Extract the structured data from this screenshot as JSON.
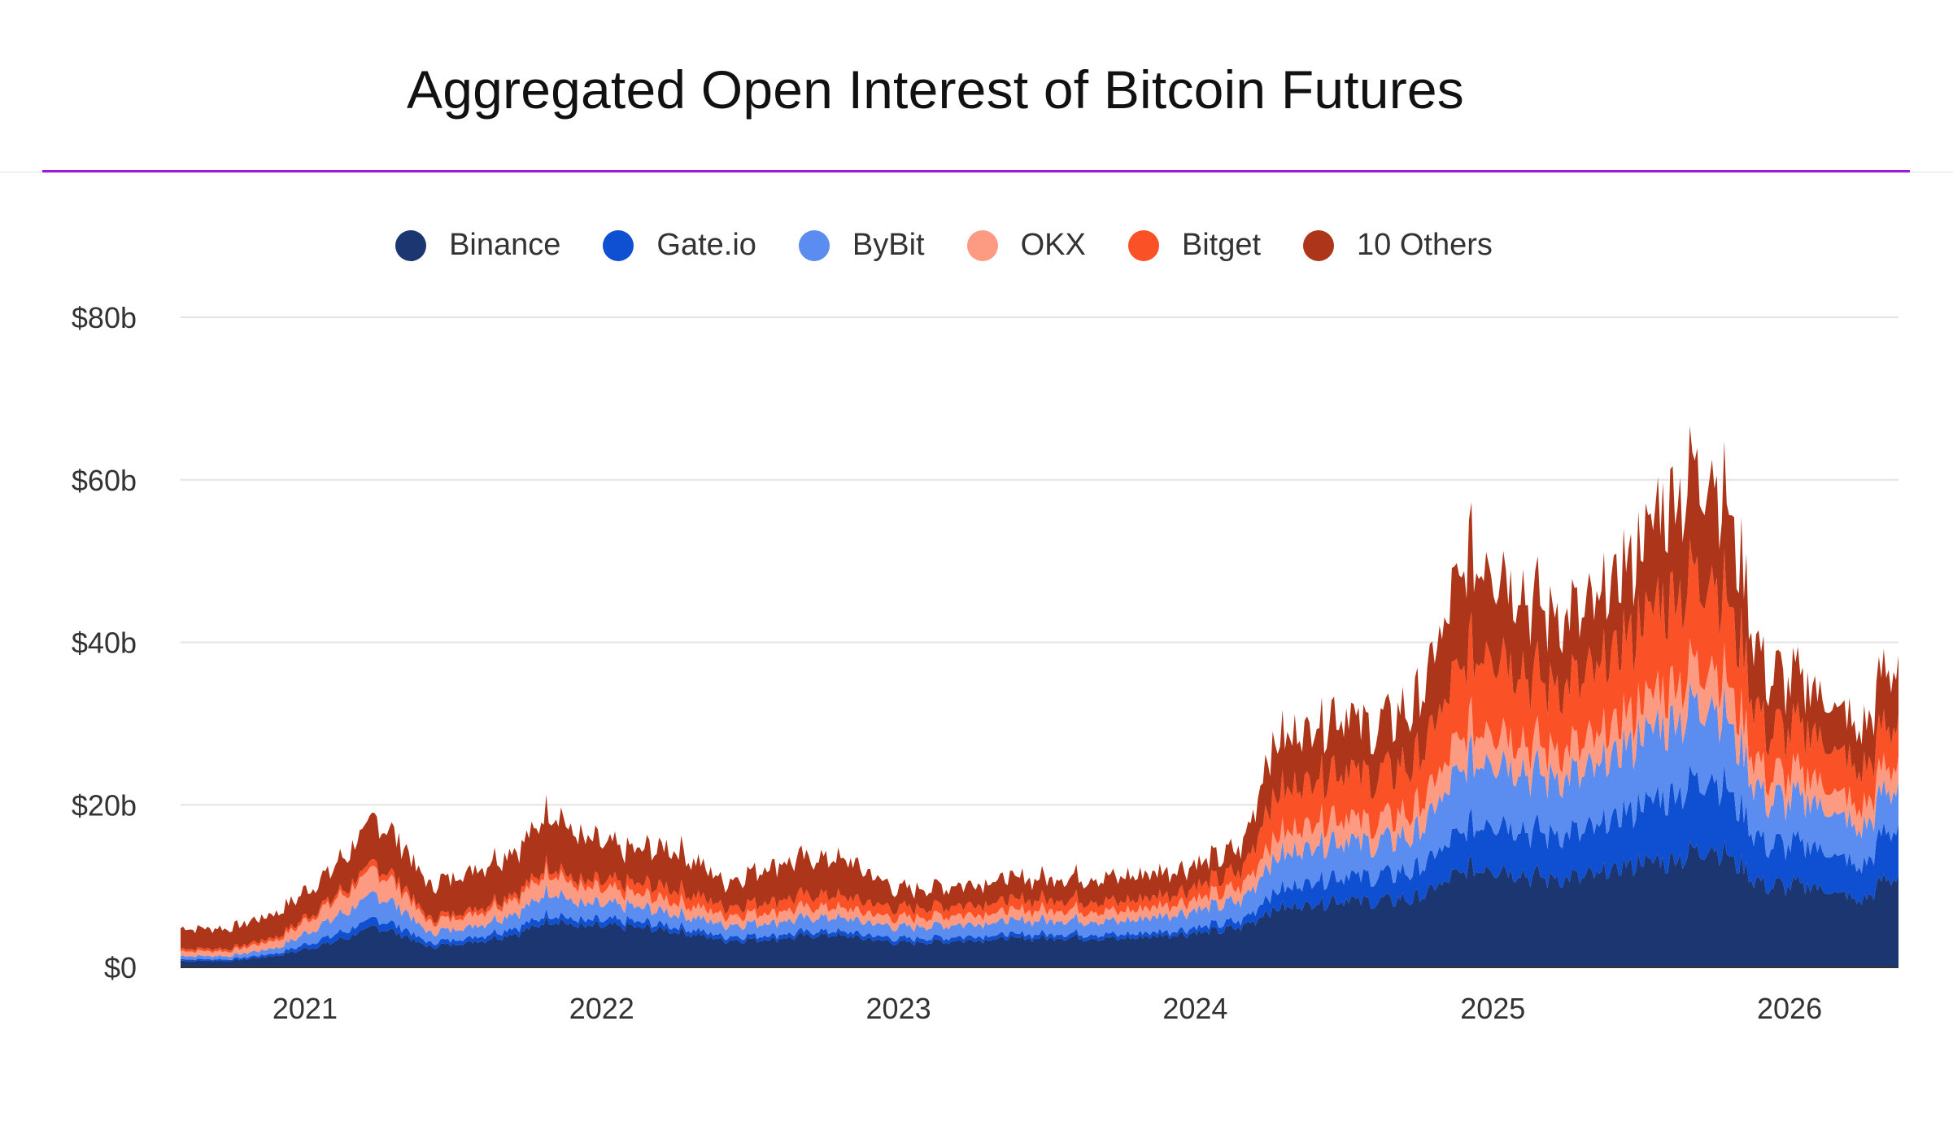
{
  "title": "Aggregated Open Interest of Bitcoin Futures",
  "legend": [
    {
      "name": "Binance",
      "color": "#1b3670"
    },
    {
      "name": "Gate.io",
      "color": "#0f4fd1"
    },
    {
      "name": "ByBit",
      "color": "#5b8cf0"
    },
    {
      "name": "OKX",
      "color": "#fc9a82"
    },
    {
      "name": "Bitget",
      "color": "#fb5127"
    },
    {
      "name": "10 Others",
      "color": "#ad3519"
    }
  ],
  "chart_data": {
    "type": "area",
    "stacked": true,
    "title": "Aggregated Open Interest of Bitcoin Futures",
    "xlabel": "",
    "ylabel": "",
    "ylim": [
      0,
      80
    ],
    "y_unit": "$b",
    "y_ticks": [
      "$0",
      "$20b",
      "$40b",
      "$60b",
      "$80b"
    ],
    "x_ticks": [
      "2021",
      "2022",
      "2023",
      "2024",
      "2025",
      "2026"
    ],
    "legend_position": "top-center",
    "grid": true,
    "x": [
      "2020-08",
      "2020-10",
      "2020-12",
      "2021-02",
      "2021-04",
      "2021-05",
      "2021-06",
      "2021-08",
      "2021-10",
      "2021-11",
      "2021-12",
      "2022-02",
      "2022-04",
      "2022-06",
      "2022-08",
      "2022-10",
      "2022-11",
      "2023-01",
      "2023-03",
      "2023-05",
      "2023-07",
      "2023-08",
      "2023-10",
      "2023-12",
      "2024-02",
      "2024-03",
      "2024-04",
      "2024-06",
      "2024-07",
      "2024-08",
      "2024-10",
      "2024-12",
      "2025-01",
      "2025-03",
      "2025-05",
      "2025-07",
      "2025-08",
      "2025-10",
      "2025-11",
      "2025-12",
      "2026-02",
      "2026-04",
      "2026-05"
    ],
    "series": [
      {
        "name": "Binance",
        "color": "#1b3670",
        "values": [
          0.8,
          0.8,
          1.5,
          3.0,
          5.0,
          4.0,
          2.5,
          3.2,
          4.5,
          6.0,
          5.0,
          5.0,
          4.5,
          3.3,
          3.5,
          4.0,
          3.8,
          3.0,
          3.2,
          3.5,
          3.6,
          3.7,
          3.5,
          4.0,
          4.5,
          5.0,
          7.0,
          8.0,
          8.5,
          8.0,
          8.5,
          12.0,
          12.5,
          11.0,
          11.0,
          13.0,
          13.0,
          15.0,
          12.5,
          10.0,
          10.0,
          8.0,
          11.0
        ]
      },
      {
        "name": "Gate.io",
        "color": "#0f4fd1",
        "values": [
          0.2,
          0.2,
          0.3,
          0.8,
          1.0,
          0.9,
          0.5,
          0.6,
          0.8,
          0.8,
          0.7,
          0.7,
          0.6,
          0.5,
          0.5,
          0.5,
          0.5,
          0.5,
          0.5,
          0.5,
          0.5,
          0.5,
          0.5,
          0.5,
          0.8,
          0.8,
          2.0,
          3.0,
          3.0,
          3.0,
          3.5,
          5.0,
          6.0,
          5.5,
          5.5,
          7.0,
          8.0,
          9.0,
          7.0,
          5.0,
          5.0,
          4.0,
          6.0
        ]
      },
      {
        "name": "ByBit",
        "color": "#5b8cf0",
        "values": [
          0.4,
          0.4,
          0.7,
          2.0,
          3.0,
          2.3,
          1.2,
          1.4,
          2.0,
          3.0,
          2.0,
          1.8,
          1.6,
          1.4,
          1.6,
          1.7,
          1.6,
          1.4,
          1.5,
          1.6,
          1.7,
          1.7,
          1.6,
          2.0,
          2.3,
          2.5,
          4.0,
          4.5,
          4.5,
          4.0,
          4.5,
          8.0,
          8.0,
          7.0,
          7.0,
          8.5,
          9.0,
          9.5,
          7.5,
          5.5,
          5.5,
          4.5,
          5.0
        ]
      },
      {
        "name": "OKX",
        "color": "#fc9a82",
        "values": [
          0.6,
          0.6,
          1.0,
          2.0,
          3.0,
          2.3,
          1.3,
          1.5,
          2.0,
          2.5,
          2.0,
          1.6,
          1.5,
          1.2,
          1.3,
          1.3,
          1.2,
          1.1,
          1.2,
          1.2,
          1.3,
          1.3,
          1.2,
          1.3,
          1.5,
          1.7,
          2.5,
          3.0,
          3.0,
          2.5,
          3.0,
          4.0,
          4.0,
          3.5,
          3.5,
          4.0,
          4.5,
          5.0,
          4.0,
          3.0,
          3.0,
          2.5,
          3.0
        ]
      },
      {
        "name": "Bitget",
        "color": "#fb5127",
        "values": [
          0.3,
          0.3,
          0.4,
          0.5,
          0.8,
          0.7,
          0.5,
          0.6,
          0.7,
          0.8,
          0.7,
          1.2,
          1.6,
          1.1,
          1.4,
          1.5,
          1.4,
          1.2,
          1.2,
          1.3,
          1.3,
          1.3,
          1.2,
          1.3,
          1.8,
          2.0,
          5.0,
          5.5,
          6.0,
          5.5,
          6.0,
          9.0,
          10.0,
          8.0,
          8.0,
          10.0,
          11.0,
          11.0,
          9.0,
          5.5,
          5.5,
          4.5,
          5.0
        ]
      },
      {
        "name": "10 Others",
        "color": "#ad3519",
        "values": [
          2.5,
          2.5,
          3.0,
          3.5,
          5.5,
          5.0,
          4.0,
          5.0,
          5.5,
          7.0,
          5.5,
          4.0,
          5.0,
          3.0,
          4.5,
          4.5,
          4.5,
          2.3,
          2.4,
          2.7,
          2.6,
          2.7,
          3.0,
          2.9,
          2.6,
          3.0,
          6.5,
          6.5,
          7.0,
          6.0,
          7.0,
          12.0,
          10.5,
          9.0,
          8.0,
          9.5,
          12.0,
          13.0,
          10.0,
          7.0,
          5.5,
          5.0,
          7.0
        ]
      }
    ]
  }
}
